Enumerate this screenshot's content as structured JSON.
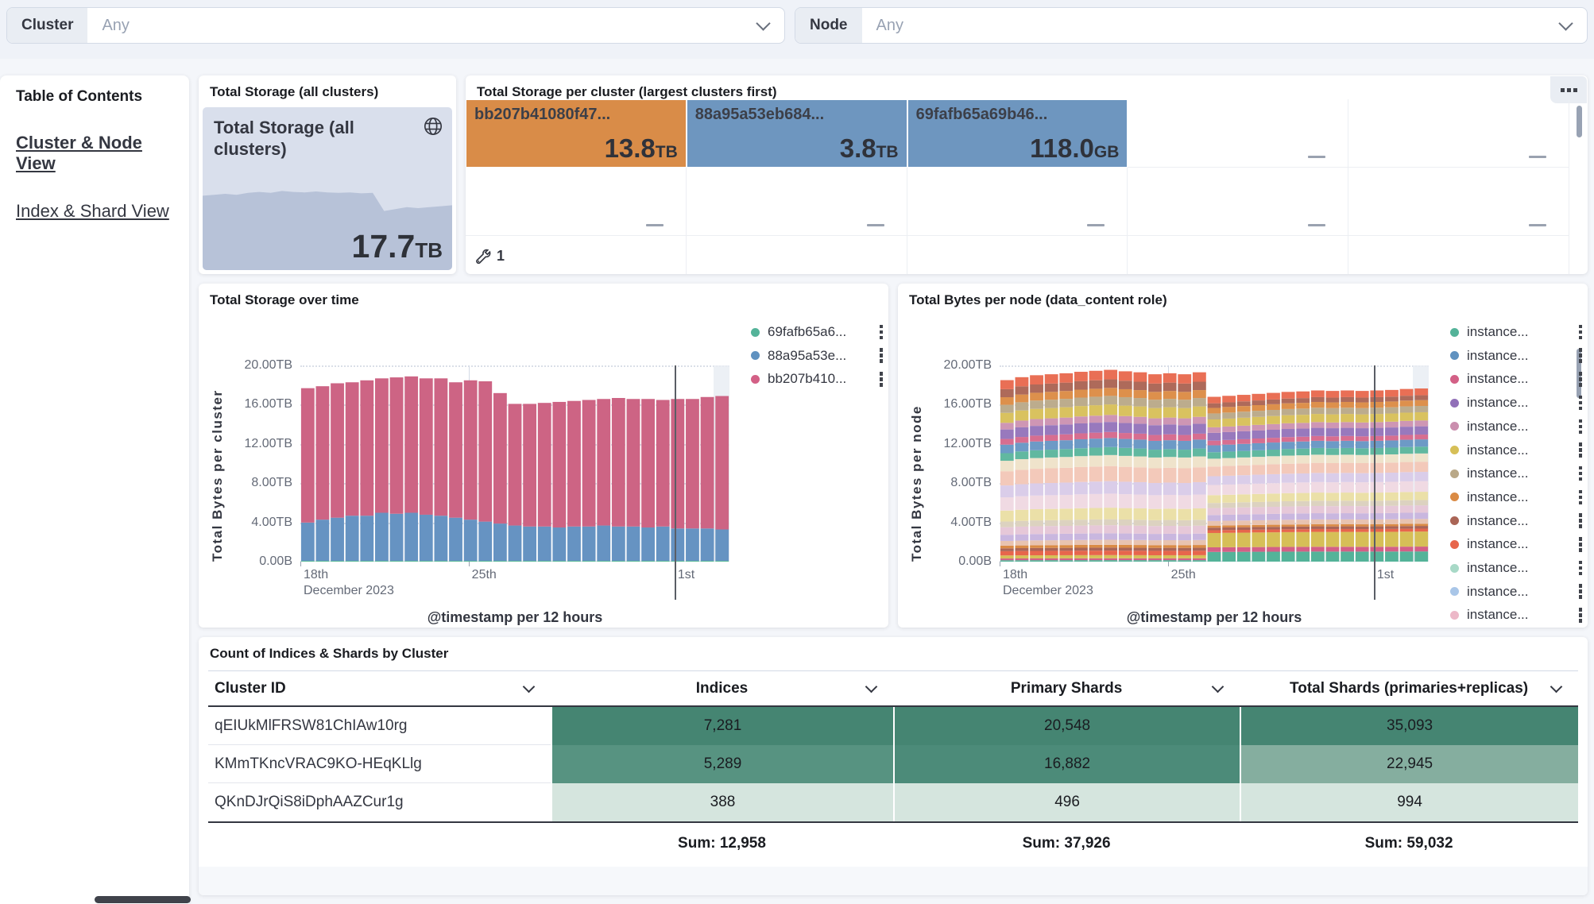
{
  "filters": {
    "cluster": {
      "label": "Cluster",
      "value": "Any"
    },
    "node": {
      "label": "Node",
      "value": "Any"
    }
  },
  "toc": {
    "title": "Table of Contents",
    "links": [
      {
        "label": "Cluster & Node View"
      },
      {
        "label": "Index & Shard View"
      }
    ]
  },
  "metric_panel": {
    "panel_title": "Total Storage (all clusters)",
    "metric_title": "Total Storage (all clusters)",
    "value": "17.7",
    "unit": "TB"
  },
  "treemap_panel": {
    "panel_title": "Total Storage per cluster (largest clusters first)",
    "badge_count": "1",
    "tiles": [
      {
        "label": "bb207b41080f47...",
        "value": "13.8",
        "unit": "TB",
        "color": "#d98c48"
      },
      {
        "label": "88a95a53eb684...",
        "value": "3.8",
        "unit": "TB",
        "color": "#6e96bf"
      },
      {
        "label": "69fafb65a69b46...",
        "value": "118.0",
        "unit": "GB",
        "color": "#6e96bf"
      }
    ]
  },
  "chart_data": [
    {
      "id": "total-storage-metric",
      "type": "area",
      "title": "Total Storage (all clusters)",
      "value": "17.7TB",
      "points": [
        0.78,
        0.79,
        0.8,
        0.79,
        0.81,
        0.82,
        0.81,
        0.83,
        0.82,
        0.815,
        0.825,
        0.815,
        0.81,
        0.815,
        0.805,
        0.81,
        0.62,
        0.64,
        0.66,
        0.65,
        0.66,
        0.67,
        0.68
      ],
      "fill_color": "#b7c2d8",
      "bg_color": "#d9dfec"
    },
    {
      "id": "total-storage-over-time",
      "type": "bar",
      "stacked": true,
      "title": "Total Storage over time",
      "xlabel": "@timestamp per 12 hours",
      "ylabel": "Total Bytes per cluster",
      "ylim": [
        0,
        20
      ],
      "yticks": [
        "20.00TB",
        "16.00TB",
        "12.00TB",
        "8.00TB",
        "4.00TB",
        "0.00B"
      ],
      "xticks": [
        {
          "label": "18th",
          "sub": "December 2023",
          "pos": 0.0,
          "line": "none"
        },
        {
          "label": "25th",
          "pos": 0.392,
          "line": "light"
        },
        {
          "label": "1st",
          "pos": 0.872,
          "line": "dark"
        }
      ],
      "legend": [
        {
          "label": "69fafb65a6...",
          "color": "#54b399"
        },
        {
          "label": "88a95a53e...",
          "color": "#6092c0"
        },
        {
          "label": "bb207b410...",
          "color": "#d36086"
        }
      ],
      "series": [
        {
          "name": "69fafb65a6...",
          "color": "#57b695",
          "values": [
            0.08,
            0.08,
            0.08,
            0.08,
            0.08,
            0.08,
            0.08,
            0.08,
            0.08,
            0.08,
            0.08,
            0.08,
            0.08,
            0.08,
            0.08,
            0.08,
            0.08,
            0.08,
            0.08,
            0.08,
            0.08,
            0.08,
            0.08,
            0.08,
            0.08,
            0.08,
            0.08,
            0.08,
            0.08
          ]
        },
        {
          "name": "88a95a53e...",
          "color": "#6693c2",
          "values": [
            3.9,
            4.2,
            4.4,
            4.6,
            4.6,
            4.9,
            4.8,
            4.9,
            4.7,
            4.6,
            4.4,
            4.2,
            4.0,
            3.8,
            3.6,
            3.5,
            3.5,
            3.4,
            3.5,
            3.5,
            3.6,
            3.5,
            3.5,
            3.4,
            3.5,
            3.3,
            3.3,
            3.3,
            3.2
          ]
        },
        {
          "name": "bb207b410...",
          "color": "#cd6484",
          "values": [
            13.7,
            13.6,
            13.7,
            13.6,
            13.8,
            13.7,
            13.9,
            13.9,
            13.9,
            14.0,
            13.8,
            14.2,
            14.3,
            13.3,
            12.4,
            12.5,
            12.6,
            12.8,
            12.8,
            12.9,
            12.9,
            13.1,
            13.0,
            13.1,
            12.9,
            13.2,
            13.2,
            13.4,
            13.6
          ]
        }
      ]
    },
    {
      "id": "total-bytes-per-node",
      "type": "bar",
      "stacked": true,
      "title": "Total Bytes per node (data_content role)",
      "xlabel": "@timestamp per 12 hours",
      "ylabel": "Total Bytes per node",
      "ylim": [
        0,
        20
      ],
      "yticks": [
        "20.00TB",
        "16.00TB",
        "12.00TB",
        "8.00TB",
        "4.00TB",
        "0.00B"
      ],
      "xticks": [
        {
          "label": "18th",
          "sub": "December 2023",
          "pos": 0.0,
          "line": "none"
        },
        {
          "label": "25th",
          "pos": 0.392,
          "line": "light"
        },
        {
          "label": "1st",
          "pos": 0.872,
          "line": "dark"
        }
      ],
      "legend": [
        {
          "label": "instance...",
          "color": "#54b399"
        },
        {
          "label": "instance...",
          "color": "#6092c0"
        },
        {
          "label": "instance...",
          "color": "#d36086"
        },
        {
          "label": "instance...",
          "color": "#9170b8"
        },
        {
          "label": "instance...",
          "color": "#ca8eae"
        },
        {
          "label": "instance...",
          "color": "#d6bf57"
        },
        {
          "label": "instance...",
          "color": "#b9a888"
        },
        {
          "label": "instance...",
          "color": "#da8b45"
        },
        {
          "label": "instance...",
          "color": "#aa6556"
        },
        {
          "label": "instance...",
          "color": "#e7664c"
        },
        {
          "label": "instance...",
          "color": "#a8d9c7"
        },
        {
          "label": "instance...",
          "color": "#a9c6e8"
        },
        {
          "label": "instance...",
          "color": "#ecb8c8"
        }
      ],
      "totals": [
        18.5,
        18.8,
        19.0,
        19.1,
        19.2,
        19.35,
        19.45,
        19.55,
        19.4,
        19.3,
        19.1,
        19.2,
        19.1,
        19.3,
        16.8,
        16.9,
        17.0,
        17.1,
        17.2,
        17.3,
        17.35,
        17.45,
        17.4,
        17.45,
        17.4,
        17.45,
        17.5,
        17.6,
        17.65
      ],
      "drop_index": 14,
      "segments": [
        {
          "color": "#54b399",
          "pre": 0.15,
          "post": 1.05
        },
        {
          "color": "#d36086",
          "pre": 0.18,
          "post": 0.5
        },
        {
          "color": "#d6bf57",
          "pre": 0.32,
          "post": 1.55
        },
        {
          "color": "#e7664c",
          "pre": 0.45,
          "post": 0.3
        },
        {
          "color": "#aa6556",
          "pre": 0.3,
          "post": 0.28
        },
        {
          "color": "#da8b45",
          "pre": 0.28,
          "post": 0.22
        },
        {
          "color": "#e8c3b0",
          "pre": 0.5,
          "post": 0.5
        },
        {
          "color": "#c9b7df",
          "pre": 0.65,
          "post": 0.65
        },
        {
          "color": "#e6c8d8",
          "pre": 0.8,
          "post": 0.75
        },
        {
          "color": "#dcd2c0",
          "pre": 0.6,
          "post": 0.55
        },
        {
          "color": "#ebe0a8",
          "pre": 1.15,
          "post": 0.85
        },
        {
          "color": "#f0dae3",
          "pre": 1.4,
          "post": 1.1
        },
        {
          "color": "#dacde9",
          "pre": 1.25,
          "post": 0.95
        },
        {
          "color": "#f3c9ba",
          "pre": 1.5,
          "post": 1.05
        },
        {
          "color": "#efe3cb",
          "pre": 1.1,
          "post": 0.85
        },
        {
          "color": "#61b8a0",
          "pre": 0.8,
          "post": 0.7
        },
        {
          "color": "#6d9ac6",
          "pre": 0.9,
          "post": 0.75
        },
        {
          "color": "#d76e90",
          "pre": 0.6,
          "post": 0.5
        },
        {
          "color": "#9879bd",
          "pre": 1.0,
          "post": 0.85
        },
        {
          "color": "#ce96b4",
          "pre": 0.7,
          "post": 0.6
        },
        {
          "color": "#d9c25f",
          "pre": 1.05,
          "post": 0.85
        },
        {
          "color": "#bcac8d",
          "pre": 0.85,
          "post": 0.65
        },
        {
          "color": "#dd904c",
          "pre": 0.8,
          "post": 0.6
        },
        {
          "color": "#ae6a5a",
          "pre": 0.85,
          "post": 0.5
        },
        {
          "color": "#e96f55",
          "pre": 0.95,
          "post": 0.7
        }
      ]
    }
  ],
  "table_panel": {
    "title": "Count of Indices & Shards by Cluster",
    "columns": [
      "Cluster ID",
      "Indices",
      "Primary Shards",
      "Total Shards (primaries+replicas)"
    ],
    "rows": [
      {
        "cluster_id": "qEIUkMlFRSW81ChIAw10rg",
        "cells": [
          {
            "text": "7,281",
            "bg": "#458572"
          },
          {
            "text": "20,548",
            "bg": "#458572"
          },
          {
            "text": "35,093",
            "bg": "#458572"
          }
        ]
      },
      {
        "cluster_id": "KMmTKncVRAC9KO-HEqKLlg",
        "cells": [
          {
            "text": "5,289",
            "bg": "#579381"
          },
          {
            "text": "16,882",
            "bg": "#4c8b79"
          },
          {
            "text": "22,945",
            "bg": "#85ae9f"
          }
        ]
      },
      {
        "cluster_id": "QKnDJrQiS8iDphAAZCur1g",
        "cells": [
          {
            "text": "388",
            "bg": "#d5e5de"
          },
          {
            "text": "496",
            "bg": "#d5e5de"
          },
          {
            "text": "994",
            "bg": "#d5e5de"
          }
        ]
      }
    ],
    "sums": [
      "Sum: 12,958",
      "Sum: 37,926",
      "Sum: 59,032"
    ]
  }
}
